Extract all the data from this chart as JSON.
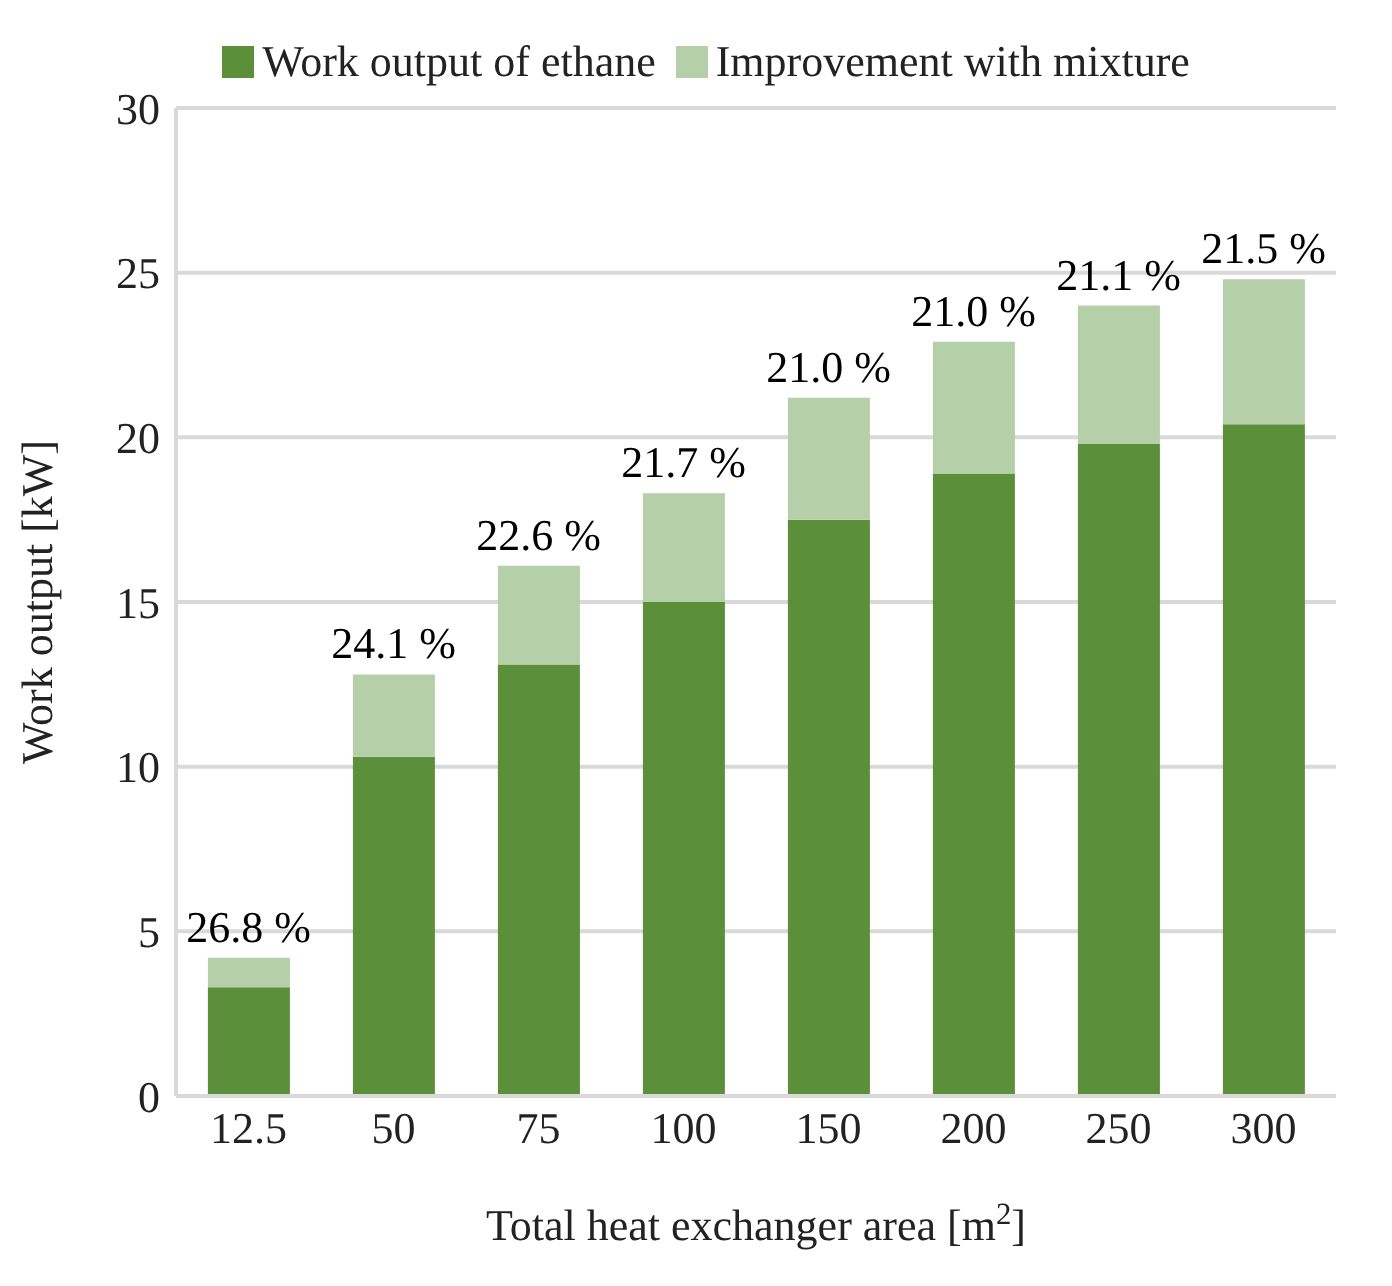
{
  "chart_data": {
    "type": "bar",
    "stacked": true,
    "xlabel": "Total heat exchanger area [m$^{2}$]",
    "ylabel": "Work output [kW]",
    "categories": [
      "12.5",
      "50",
      "75",
      "100",
      "150",
      "200",
      "250",
      "300"
    ],
    "series": [
      {
        "name": "Work output of ethane",
        "color": "#5b8f3a",
        "values": [
          3.3,
          10.3,
          13.1,
          15.0,
          17.5,
          18.9,
          19.8,
          20.4
        ]
      },
      {
        "name": "Improvement with mixture",
        "color": "#b5d0a8",
        "values": [
          0.9,
          2.5,
          3.0,
          3.3,
          3.7,
          4.0,
          4.2,
          4.4
        ]
      }
    ],
    "annotations": [
      {
        "text": "26.8 %",
        "x": "12.5",
        "y": 4.2
      },
      {
        "text": "24.1 %",
        "x": "50",
        "y": 12.8
      },
      {
        "text": "22.6 %",
        "x": "75",
        "y": 16.1
      },
      {
        "text": "21.7 %",
        "x": "100",
        "y": 18.3
      },
      {
        "text": "21.0 %",
        "x": "150",
        "y": 21.2
      },
      {
        "text": "21.0 %",
        "x": "200",
        "y": 22.9
      },
      {
        "text": "21.1 %",
        "x": "250",
        "y": 24.0
      },
      {
        "text": "21.5 %",
        "x": "300",
        "y": 24.8
      }
    ],
    "ylim": [
      0,
      30
    ],
    "yticks": [
      0,
      5,
      10,
      15,
      20,
      25,
      30
    ],
    "grid": "y",
    "legend": "top"
  }
}
